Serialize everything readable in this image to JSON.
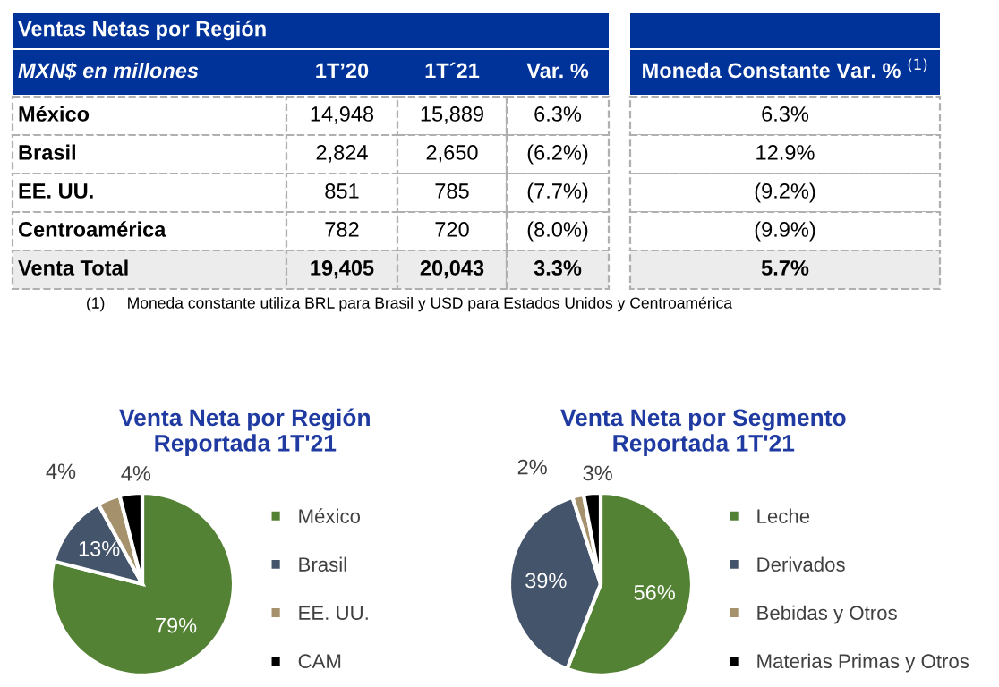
{
  "chart_data": [
    {
      "type": "other",
      "title": "Ventas Netas por Región",
      "annotations": [
        "MXN$ en millones",
        "1T’20",
        "1T´21",
        "Var. %",
        "Moneda Constante Var. % $^{(1)}$",
        "México",
        "14,948",
        "15,889",
        "6.3%",
        "6.3%",
        "Brasil",
        "2,824",
        "2,650",
        "(6.2%)",
        "12.9%",
        "EE. UU.",
        "851",
        "785",
        "(7.7%)",
        "(9.2%)",
        "Centroamérica",
        "782",
        "720",
        "(8.0%)",
        "(9.9%)",
        "Venta Total",
        "19,405",
        "20,043",
        "3.3%",
        "5.7%",
        "(1)     Moneda constante utiliza BRL para Brasil y USD para Estados Unidos y Centroamérica"
      ]
    },
    {
      "type": "pie",
      "title": "Venta Neta por Región\nReportada 1T'21",
      "categories": [
        "México",
        "Brasil",
        "EE. UU.",
        "CAM"
      ],
      "values": [
        79,
        13,
        4,
        4
      ],
      "value_labels": [
        "79%",
        "13%",
        "4%",
        "4%"
      ],
      "colors": [
        "#548235",
        "#44546a",
        "#a5916b",
        "#000000"
      ],
      "legend": "right"
    },
    {
      "type": "pie",
      "title": "Venta Neta por Segmento\nReportada 1T'21",
      "categories": [
        "Leche",
        "Derivados",
        "Bebidas y Otros",
        "Materias Primas y Otros"
      ],
      "values": [
        56,
        39,
        2,
        3
      ],
      "value_labels": [
        "56%",
        "39%",
        "2%",
        "3%"
      ],
      "colors": [
        "#548235",
        "#44546a",
        "#a5916b",
        "#000000"
      ],
      "legend": "right"
    }
  ]
}
